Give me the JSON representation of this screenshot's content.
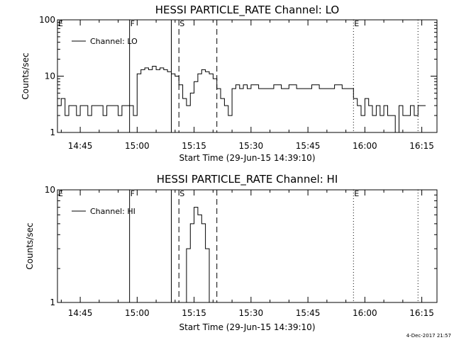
{
  "chart_data": [
    {
      "type": "line",
      "title": "HESSI PARTICLE_RATE Channel: LO",
      "xlabel": "Start Time (29-Jun-15 14:39:10)",
      "ylabel": "Counts/sec",
      "yscale": "log",
      "ylim": [
        1,
        100
      ],
      "xlim": [
        "14:39",
        "16:19"
      ],
      "x_ticks": [
        "14:45",
        "15:00",
        "15:15",
        "15:30",
        "15:45",
        "16:00",
        "16:15"
      ],
      "y_ticks": [
        "1",
        "10",
        "100"
      ],
      "grid": false,
      "legend": "top-left",
      "series": [
        {
          "name": "Channel: LO",
          "x": [
            "14:39",
            "14:40",
            "14:41",
            "14:42",
            "14:43",
            "14:44",
            "14:45",
            "14:46",
            "14:47",
            "14:48",
            "14:49",
            "14:50",
            "14:51",
            "14:52",
            "14:53",
            "14:54",
            "14:55",
            "14:56",
            "14:57",
            "14:58",
            "14:59",
            "15:00",
            "15:01",
            "15:02",
            "15:03",
            "15:04",
            "15:05",
            "15:06",
            "15:07",
            "15:08",
            "15:09",
            "15:10",
            "15:11",
            "15:12",
            "15:13",
            "15:14",
            "15:15",
            "15:16",
            "15:17",
            "15:18",
            "15:19",
            "15:20",
            "15:21",
            "15:22",
            "15:23",
            "15:24",
            "15:25",
            "15:26",
            "15:27",
            "15:28",
            "15:29",
            "15:30",
            "15:32",
            "15:34",
            "15:36",
            "15:38",
            "15:40",
            "15:42",
            "15:44",
            "15:46",
            "15:48",
            "15:50",
            "15:52",
            "15:54",
            "15:56",
            "15:57",
            "15:58",
            "15:59",
            "16:00",
            "16:01",
            "16:02",
            "16:03",
            "16:04",
            "16:05",
            "16:06",
            "16:07",
            "16:08",
            "16:09",
            "16:10",
            "16:11",
            "16:12",
            "16:13",
            "16:14",
            "16:15"
          ],
          "values": [
            3,
            4,
            2,
            3,
            3,
            2,
            3,
            3,
            2,
            3,
            3,
            3,
            2,
            3,
            3,
            3,
            2,
            3,
            3,
            3,
            2,
            11,
            13,
            14,
            13,
            15,
            13,
            14,
            13,
            12,
            11,
            10,
            7,
            4,
            3,
            5,
            8,
            11,
            13,
            12,
            11,
            9,
            6,
            4,
            3,
            2,
            6,
            7,
            6,
            7,
            6,
            7,
            6,
            6,
            7,
            6,
            7,
            6,
            6,
            7,
            6,
            6,
            7,
            6,
            6,
            4,
            3,
            2,
            4,
            3,
            2,
            3,
            2,
            3,
            2,
            2,
            1,
            3,
            2,
            2,
            3,
            2,
            3,
            3
          ]
        }
      ],
      "vertical_markers": [
        {
          "label": "E",
          "x": "14:39",
          "style": "none"
        },
        {
          "label": "F",
          "x": "14:58",
          "style": "solid"
        },
        {
          "label": "",
          "x": "15:09",
          "style": "solid"
        },
        {
          "label": "S",
          "x": "15:11",
          "style": "dashed"
        },
        {
          "label": "",
          "x": "15:21",
          "style": "dashed"
        },
        {
          "label": "E",
          "x": "15:57",
          "style": "dotted"
        },
        {
          "label": "",
          "x": "16:14",
          "style": "dotted"
        }
      ]
    },
    {
      "type": "line",
      "title": "HESSI PARTICLE_RATE Channel: HI",
      "xlabel": "Start Time (29-Jun-15 14:39:10)",
      "ylabel": "Counts/sec",
      "yscale": "log",
      "ylim": [
        1,
        10
      ],
      "xlim": [
        "14:39",
        "16:19"
      ],
      "x_ticks": [
        "14:45",
        "15:00",
        "15:15",
        "15:30",
        "15:45",
        "16:00",
        "16:15"
      ],
      "y_ticks": [
        "1",
        "10"
      ],
      "grid": false,
      "legend": "top-left",
      "series": [
        {
          "name": "Channel: HI",
          "x": [
            "15:12",
            "15:13",
            "15:14",
            "15:15",
            "15:16",
            "15:17",
            "15:18",
            "15:19"
          ],
          "values": [
            1,
            3,
            5,
            7,
            6,
            5,
            3,
            1
          ]
        }
      ],
      "vertical_markers": [
        {
          "label": "E",
          "x": "14:39",
          "style": "none"
        },
        {
          "label": "F",
          "x": "14:58",
          "style": "solid"
        },
        {
          "label": "",
          "x": "15:09",
          "style": "solid"
        },
        {
          "label": "S",
          "x": "15:11",
          "style": "dashed"
        },
        {
          "label": "",
          "x": "15:21",
          "style": "dashed"
        },
        {
          "label": "E",
          "x": "15:57",
          "style": "dotted"
        },
        {
          "label": "",
          "x": "16:14",
          "style": "dotted"
        }
      ]
    }
  ],
  "footer": {
    "stamp": "4-Dec-2017 21:57"
  }
}
